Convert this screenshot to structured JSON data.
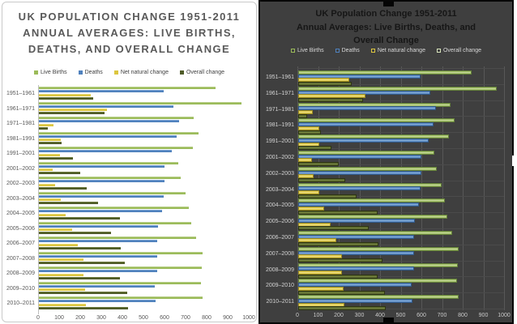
{
  "left_panel": {
    "title_lines": [
      "UK POPULATION CHANGE 1951-2011",
      "ANNUAL AVERAGES: LIVE BIRTHS, DEATHS, AND OVERALL CHANGE"
    ]
  },
  "right_panel": {
    "title_lines": [
      "UK Population Change 1951-2011",
      "Annual Averages: Live Births, Deaths, and Overall Change"
    ]
  },
  "chart_data": {
    "type": "bar",
    "orientation": "horizontal",
    "title": "UK Population Change 1951-2011",
    "subtitle": "Annual Averages: Live Births, Deaths, and Overall Change",
    "xlabel": "",
    "ylabel": "",
    "xlim": [
      0,
      1000
    ],
    "xticks": [
      0,
      100,
      200,
      300,
      400,
      500,
      600,
      700,
      800,
      900,
      1000
    ],
    "legend_position": "top",
    "categories": [
      "1951–1961",
      "1961–1971",
      "1971–1981",
      "1981–1991",
      "1991–2001",
      "2001–2002",
      "2002–2003",
      "2003–2004",
      "2004–2005",
      "2005–2006",
      "2006–2007",
      "2007–2008",
      "2008–2009",
      "2009–2010",
      "2010–2011"
    ],
    "series": [
      {
        "name": "Live Births",
        "color": "#9BBB59",
        "dark": "#64803A",
        "light": "#C3D59B",
        "right_swatch": "#9BBB59",
        "values": [
          839,
          962,
          736,
          757,
          731,
          660,
          672,
          695,
          710,
          722,
          746,
          775,
          772,
          768,
          775
        ]
      },
      {
        "name": "Deaths",
        "color": "#4F81BD",
        "dark": "#2F5787",
        "light": "#85ABD6",
        "right_swatch": "#4F81BD",
        "values": [
          593,
          638,
          666,
          655,
          631,
          595,
          596,
          593,
          583,
          565,
          560,
          562,
          560,
          550,
          552
        ]
      },
      {
        "name": "Net natural change",
        "color": "#DCC63F",
        "dark": "#9A8A20",
        "light": "#EBDC82",
        "right_swatch": "#DCC63F",
        "values": [
          246,
          324,
          69,
          103,
          100,
          65,
          76,
          102,
          127,
          157,
          186,
          213,
          212,
          218,
          223
        ]
      },
      {
        "name": "Overall change",
        "color": "#4F5B28",
        "dark": "#2E3513",
        "light": "#77853F",
        "right_swatch": "#D8E4BC",
        "values": [
          258,
          312,
          42,
          108,
          161,
          197,
          228,
          282,
          385,
          342,
          390,
          406,
          385,
          419,
          424
        ]
      }
    ],
    "panels": [
      {
        "background": "#FFFFFF",
        "grid": false,
        "title_style": "uppercase gray"
      },
      {
        "background": "#3F3F3F",
        "grid": true,
        "title_style": "bold dark"
      }
    ]
  }
}
